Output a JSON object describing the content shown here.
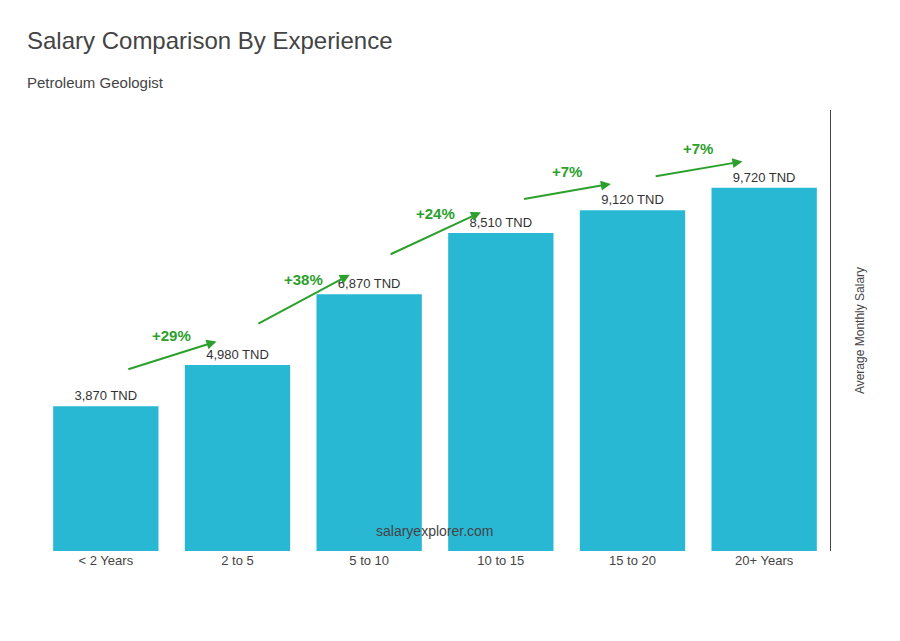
{
  "chart_data": {
    "type": "bar",
    "title": "Salary Comparison By Experience",
    "subtitle": "Petroleum Geologist",
    "ylabel": "Average Monthly Salary",
    "categories": [
      "< 2 Years",
      "2 to 5",
      "5 to 10",
      "10 to 15",
      "15 to 20",
      "20+ Years"
    ],
    "values": [
      3870,
      4980,
      6870,
      8510,
      9120,
      9720
    ],
    "value_labels": [
      "3,870 TND",
      "4,980 TND",
      "6,870 TND",
      "8,510 TND",
      "9,120 TND",
      "9,720 TND"
    ],
    "data_labels": true,
    "color": "#29b8d4",
    "ylim": [
      0,
      11800
    ],
    "tick_labels": "x",
    "grid": false,
    "annotations": [
      "+29%",
      "+38%",
      "+24%",
      "+7%",
      "+7%"
    ],
    "footer": "salaryexplorer.com"
  }
}
